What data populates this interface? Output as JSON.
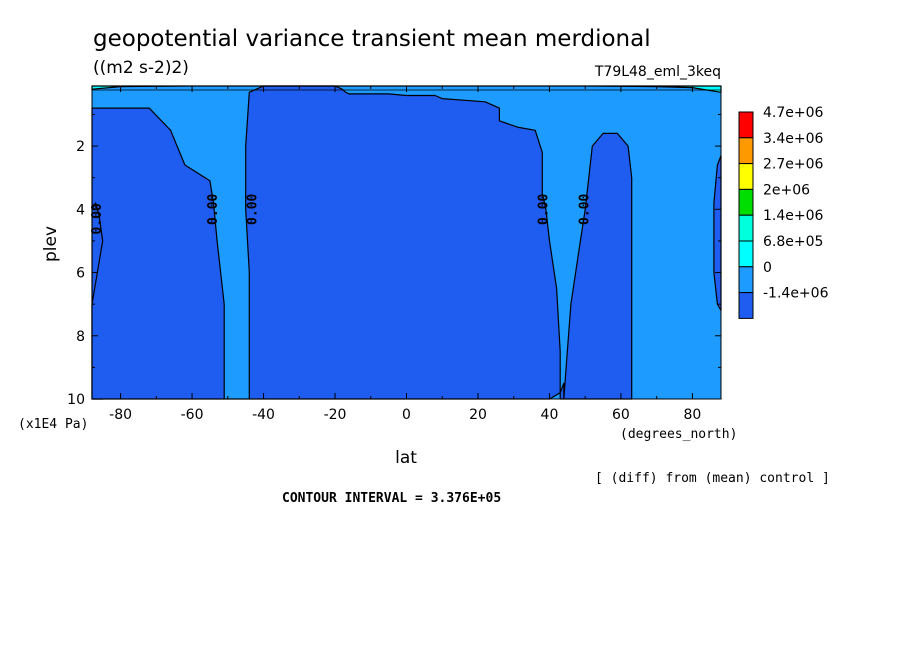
{
  "chart_data": {
    "type": "contour",
    "title": "geopotential variance transient mean merdional",
    "units": "((m2 s-2)2)",
    "run_label": "T79L48_eml_3keq",
    "xlabel": "lat",
    "x_units": "(degrees_north)",
    "ylabel": "plev",
    "y_units": "(x1E4 Pa)",
    "xlim": [
      -88,
      88
    ],
    "ylim": [
      10,
      0.1
    ],
    "x_ticks": [
      -80,
      -60,
      -40,
      -20,
      0,
      20,
      40,
      60,
      80
    ],
    "x_tick_labels": [
      "-80",
      "-60",
      "-40",
      "-20",
      "0",
      "20",
      "40",
      "60",
      "80"
    ],
    "y_ticks": [
      2,
      4,
      6,
      8,
      10
    ],
    "y_tick_labels": [
      "2",
      "4",
      "6",
      "8",
      "10"
    ],
    "levels": [
      {
        "label": "4.7e+06",
        "color": "#ff0000"
      },
      {
        "label": "3.4e+06",
        "color": "#ff9900"
      },
      {
        "label": "2.7e+06",
        "color": "#ffff00"
      },
      {
        "label": "2e+06",
        "color": "#00dd00"
      },
      {
        "label": "1.4e+06",
        "color": "#00ffdd"
      },
      {
        "label": "6.8e+05",
        "color": "#00ffff"
      },
      {
        "label": "0",
        "color": "#1e9bff"
      },
      {
        "label": "-1.4e+06",
        "color": "#1f5cf0"
      }
    ],
    "contour_labels": [
      "0.00",
      "0.00",
      "0.00",
      "0.00",
      "0.00"
    ],
    "regions": [
      {
        "name": "negative-south",
        "fill": "#1f5cf0",
        "boundary": [
          [
            -88,
            4.0
          ],
          [
            -87,
            3.8
          ],
          [
            -86,
            4.2
          ],
          [
            -85,
            5.0
          ],
          [
            -85,
            10
          ],
          [
            -88,
            10
          ]
        ]
      },
      {
        "name": "negative-midsouth",
        "fill": "#1f5cf0",
        "boundary": [
          [
            -88,
            0.8
          ],
          [
            -72,
            0.8
          ],
          [
            -66,
            1.5
          ],
          [
            -62,
            2.6
          ],
          [
            -55,
            3.1
          ],
          [
            -54,
            3.8
          ],
          [
            -53,
            5.0
          ],
          [
            -51,
            7.0
          ],
          [
            -51,
            10
          ],
          [
            -44,
            10
          ],
          [
            -44,
            6.0
          ],
          [
            -45,
            4.0
          ],
          [
            -45,
            2.0
          ],
          [
            -44,
            0.3
          ],
          [
            -40,
            0.1
          ],
          [
            -20,
            0.1
          ],
          [
            -19,
            0.15
          ],
          [
            -18,
            0.2
          ],
          [
            -17,
            0.3
          ],
          [
            -16,
            0.35
          ],
          [
            -5,
            0.35
          ],
          [
            0,
            0.4
          ],
          [
            8,
            0.4
          ],
          [
            10,
            0.5
          ],
          [
            22,
            0.6
          ],
          [
            26,
            0.8
          ],
          [
            26,
            1.2
          ],
          [
            31,
            1.4
          ],
          [
            36,
            1.5
          ],
          [
            38,
            2.2
          ],
          [
            38,
            3.5
          ],
          [
            39,
            4.0
          ],
          [
            40,
            5.0
          ],
          [
            42,
            6.5
          ],
          [
            43,
            8.5
          ],
          [
            43,
            10
          ],
          [
            63,
            10
          ],
          [
            63,
            3.0
          ],
          [
            62,
            2.0
          ],
          [
            59,
            1.6
          ],
          [
            55,
            1.6
          ],
          [
            52,
            2.0
          ],
          [
            51,
            3.0
          ],
          [
            50,
            4.0
          ],
          [
            48,
            5.5
          ],
          [
            46,
            7.0
          ],
          [
            45,
            8.5
          ],
          [
            44,
            10
          ],
          [
            44,
            9.5
          ],
          [
            43,
            9.8
          ],
          [
            40,
            10
          ],
          [
            -88,
            10
          ],
          [
            -88,
            7.0
          ],
          [
            -85,
            5.0
          ],
          [
            -86,
            4.2
          ],
          [
            -87,
            3.8
          ],
          [
            -88,
            4.0
          ]
        ]
      },
      {
        "name": "negative-north",
        "fill": "#1f5cf0",
        "boundary": [
          [
            88,
            2.3
          ],
          [
            87,
            2.6
          ],
          [
            86,
            3.8
          ],
          [
            86,
            6.0
          ],
          [
            87,
            7.0
          ],
          [
            88,
            7.2
          ]
        ]
      },
      {
        "name": "upper-band",
        "fill": "#00ffff",
        "boundary": [
          [
            -88,
            0.1
          ],
          [
            88,
            0.1
          ],
          [
            88,
            0.3
          ],
          [
            80,
            0.15
          ],
          [
            70,
            0.12
          ],
          [
            50,
            0.1
          ],
          [
            20,
            0.1
          ],
          [
            -40,
            0.1
          ],
          [
            -60,
            0.1
          ],
          [
            -80,
            0.12
          ],
          [
            -88,
            0.2
          ]
        ]
      }
    ]
  },
  "footer": {
    "diff_note": "[ (diff) from (mean) control ]",
    "contour_interval": "CONTOUR INTERVAL = 3.376E+05"
  }
}
